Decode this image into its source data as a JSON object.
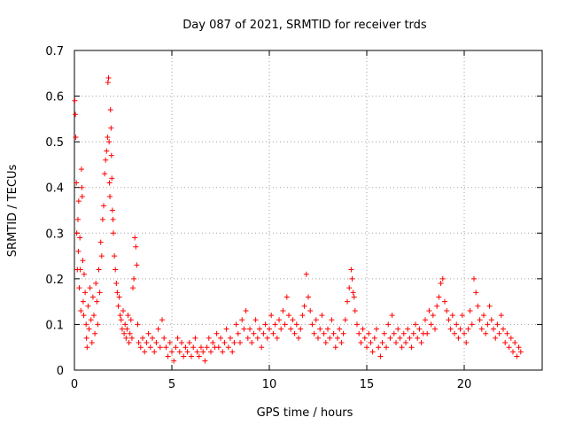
{
  "chart_data": {
    "type": "scatter",
    "title": "Day 087 of 2021, SRMTID for receiver trds",
    "xlabel": "GPS time / hours",
    "ylabel": "SRMTID / TECUs",
    "xlim": [
      0,
      24
    ],
    "ylim": [
      0,
      0.7
    ],
    "xticks": [
      0,
      5,
      10,
      15,
      20
    ],
    "yticks": [
      0,
      0.1,
      0.2,
      0.3,
      0.4,
      0.5,
      0.6,
      0.7
    ],
    "xtick_labels": [
      "0",
      "5",
      "10",
      "15",
      "20"
    ],
    "ytick_labels": [
      "0",
      "0.1",
      "0.2",
      "0.3",
      "0.4",
      "0.5",
      "0.6",
      "0.7"
    ],
    "grid": true,
    "marker": "+",
    "color": "#ff0000",
    "series": [
      {
        "name": "trds",
        "points": [
          [
            0.02,
            0.59
          ],
          [
            0.05,
            0.56
          ],
          [
            0.07,
            0.51
          ],
          [
            0.1,
            0.41
          ],
          [
            0.12,
            0.3
          ],
          [
            0.15,
            0.22
          ],
          [
            0.18,
            0.33
          ],
          [
            0.2,
            0.26
          ],
          [
            0.22,
            0.37
          ],
          [
            0.25,
            0.18
          ],
          [
            0.28,
            0.29
          ],
          [
            0.3,
            0.22
          ],
          [
            0.33,
            0.13
          ],
          [
            0.36,
            0.44
          ],
          [
            0.38,
            0.4
          ],
          [
            0.4,
            0.38
          ],
          [
            0.43,
            0.24
          ],
          [
            0.45,
            0.15
          ],
          [
            0.48,
            0.12
          ],
          [
            0.5,
            0.21
          ],
          [
            0.55,
            0.17
          ],
          [
            0.6,
            0.1
          ],
          [
            0.62,
            0.07
          ],
          [
            0.65,
            0.05
          ],
          [
            0.7,
            0.14
          ],
          [
            0.75,
            0.09
          ],
          [
            0.8,
            0.18
          ],
          [
            0.85,
            0.11
          ],
          [
            0.9,
            0.06
          ],
          [
            0.95,
            0.16
          ],
          [
            1.0,
            0.12
          ],
          [
            1.05,
            0.08
          ],
          [
            1.1,
            0.19
          ],
          [
            1.15,
            0.15
          ],
          [
            1.2,
            0.1
          ],
          [
            1.25,
            0.22
          ],
          [
            1.3,
            0.17
          ],
          [
            1.35,
            0.28
          ],
          [
            1.4,
            0.25
          ],
          [
            1.45,
            0.33
          ],
          [
            1.5,
            0.36
          ],
          [
            1.55,
            0.43
          ],
          [
            1.6,
            0.46
          ],
          [
            1.65,
            0.48
          ],
          [
            1.7,
            0.51
          ],
          [
            1.72,
            0.63
          ],
          [
            1.75,
            0.64
          ],
          [
            1.78,
            0.5
          ],
          [
            1.8,
            0.41
          ],
          [
            1.82,
            0.38
          ],
          [
            1.85,
            0.57
          ],
          [
            1.88,
            0.53
          ],
          [
            1.9,
            0.47
          ],
          [
            1.92,
            0.42
          ],
          [
            1.95,
            0.35
          ],
          [
            1.98,
            0.33
          ],
          [
            2.0,
            0.3
          ],
          [
            2.05,
            0.25
          ],
          [
            2.1,
            0.22
          ],
          [
            2.15,
            0.19
          ],
          [
            2.2,
            0.17
          ],
          [
            2.25,
            0.14
          ],
          [
            2.3,
            0.16
          ],
          [
            2.35,
            0.12
          ],
          [
            2.4,
            0.11
          ],
          [
            2.45,
            0.09
          ],
          [
            2.5,
            0.13
          ],
          [
            2.55,
            0.08
          ],
          [
            2.6,
            0.1
          ],
          [
            2.65,
            0.07
          ],
          [
            2.7,
            0.09
          ],
          [
            2.75,
            0.12
          ],
          [
            2.8,
            0.06
          ],
          [
            2.85,
            0.08
          ],
          [
            2.9,
            0.11
          ],
          [
            2.95,
            0.07
          ],
          [
            3.0,
            0.18
          ],
          [
            3.05,
            0.2
          ],
          [
            3.1,
            0.29
          ],
          [
            3.15,
            0.27
          ],
          [
            3.2,
            0.23
          ],
          [
            3.25,
            0.1
          ],
          [
            3.3,
            0.06
          ],
          [
            3.4,
            0.05
          ],
          [
            3.5,
            0.07
          ],
          [
            3.6,
            0.04
          ],
          [
            3.7,
            0.06
          ],
          [
            3.8,
            0.08
          ],
          [
            3.9,
            0.05
          ],
          [
            4.0,
            0.07
          ],
          [
            4.1,
            0.04
          ],
          [
            4.2,
            0.06
          ],
          [
            4.3,
            0.09
          ],
          [
            4.4,
            0.05
          ],
          [
            4.5,
            0.11
          ],
          [
            4.6,
            0.07
          ],
          [
            4.7,
            0.05
          ],
          [
            4.8,
            0.03
          ],
          [
            4.9,
            0.06
          ],
          [
            5.0,
            0.04
          ],
          [
            5.1,
            0.02
          ],
          [
            5.2,
            0.05
          ],
          [
            5.3,
            0.07
          ],
          [
            5.4,
            0.04
          ],
          [
            5.5,
            0.06
          ],
          [
            5.6,
            0.03
          ],
          [
            5.7,
            0.05
          ],
          [
            5.8,
            0.04
          ],
          [
            5.9,
            0.06
          ],
          [
            6.0,
            0.03
          ],
          [
            6.1,
            0.05
          ],
          [
            6.2,
            0.07
          ],
          [
            6.3,
            0.04
          ],
          [
            6.4,
            0.03
          ],
          [
            6.5,
            0.05
          ],
          [
            6.6,
            0.04
          ],
          [
            6.7,
            0.02
          ],
          [
            6.8,
            0.05
          ],
          [
            6.9,
            0.07
          ],
          [
            7.0,
            0.04
          ],
          [
            7.1,
            0.06
          ],
          [
            7.2,
            0.05
          ],
          [
            7.3,
            0.08
          ],
          [
            7.4,
            0.05
          ],
          [
            7.5,
            0.07
          ],
          [
            7.6,
            0.04
          ],
          [
            7.7,
            0.06
          ],
          [
            7.8,
            0.09
          ],
          [
            7.9,
            0.05
          ],
          [
            8.0,
            0.07
          ],
          [
            8.1,
            0.04
          ],
          [
            8.2,
            0.06
          ],
          [
            8.3,
            0.1
          ],
          [
            8.4,
            0.08
          ],
          [
            8.5,
            0.06
          ],
          [
            8.6,
            0.11
          ],
          [
            8.7,
            0.09
          ],
          [
            8.8,
            0.13
          ],
          [
            8.9,
            0.07
          ],
          [
            9.0,
            0.09
          ],
          [
            9.1,
            0.06
          ],
          [
            9.2,
            0.08
          ],
          [
            9.3,
            0.11
          ],
          [
            9.4,
            0.07
          ],
          [
            9.5,
            0.09
          ],
          [
            9.6,
            0.05
          ],
          [
            9.7,
            0.08
          ],
          [
            9.8,
            0.1
          ],
          [
            9.9,
            0.07
          ],
          [
            10.0,
            0.09
          ],
          [
            10.1,
            0.12
          ],
          [
            10.2,
            0.08
          ],
          [
            10.3,
            0.1
          ],
          [
            10.4,
            0.07
          ],
          [
            10.5,
            0.11
          ],
          [
            10.6,
            0.09
          ],
          [
            10.7,
            0.13
          ],
          [
            10.8,
            0.1
          ],
          [
            10.9,
            0.16
          ],
          [
            11.0,
            0.12
          ],
          [
            11.1,
            0.09
          ],
          [
            11.2,
            0.11
          ],
          [
            11.3,
            0.08
          ],
          [
            11.4,
            0.1
          ],
          [
            11.5,
            0.07
          ],
          [
            11.6,
            0.09
          ],
          [
            11.7,
            0.12
          ],
          [
            11.8,
            0.14
          ],
          [
            11.9,
            0.21
          ],
          [
            12.0,
            0.16
          ],
          [
            12.1,
            0.13
          ],
          [
            12.2,
            0.1
          ],
          [
            12.3,
            0.08
          ],
          [
            12.4,
            0.11
          ],
          [
            12.5,
            0.07
          ],
          [
            12.6,
            0.09
          ],
          [
            12.7,
            0.12
          ],
          [
            12.8,
            0.08
          ],
          [
            12.9,
            0.06
          ],
          [
            13.0,
            0.09
          ],
          [
            13.1,
            0.07
          ],
          [
            13.2,
            0.11
          ],
          [
            13.3,
            0.08
          ],
          [
            13.4,
            0.05
          ],
          [
            13.5,
            0.07
          ],
          [
            13.6,
            0.09
          ],
          [
            13.7,
            0.06
          ],
          [
            13.8,
            0.08
          ],
          [
            13.9,
            0.11
          ],
          [
            14.0,
            0.15
          ],
          [
            14.1,
            0.18
          ],
          [
            14.2,
            0.22
          ],
          [
            14.25,
            0.2
          ],
          [
            14.3,
            0.17
          ],
          [
            14.35,
            0.16
          ],
          [
            14.4,
            0.13
          ],
          [
            14.5,
            0.1
          ],
          [
            14.6,
            0.08
          ],
          [
            14.7,
            0.06
          ],
          [
            14.8,
            0.09
          ],
          [
            14.9,
            0.07
          ],
          [
            15.0,
            0.05
          ],
          [
            15.1,
            0.08
          ],
          [
            15.2,
            0.06
          ],
          [
            15.3,
            0.04
          ],
          [
            15.4,
            0.07
          ],
          [
            15.5,
            0.09
          ],
          [
            15.6,
            0.05
          ],
          [
            15.7,
            0.03
          ],
          [
            15.8,
            0.06
          ],
          [
            15.9,
            0.08
          ],
          [
            16.0,
            0.05
          ],
          [
            16.1,
            0.1
          ],
          [
            16.2,
            0.07
          ],
          [
            16.3,
            0.12
          ],
          [
            16.4,
            0.08
          ],
          [
            16.5,
            0.06
          ],
          [
            16.6,
            0.09
          ],
          [
            16.7,
            0.07
          ],
          [
            16.8,
            0.05
          ],
          [
            16.9,
            0.08
          ],
          [
            17.0,
            0.06
          ],
          [
            17.1,
            0.09
          ],
          [
            17.2,
            0.07
          ],
          [
            17.3,
            0.05
          ],
          [
            17.4,
            0.08
          ],
          [
            17.5,
            0.1
          ],
          [
            17.6,
            0.07
          ],
          [
            17.7,
            0.09
          ],
          [
            17.8,
            0.06
          ],
          [
            17.9,
            0.08
          ],
          [
            18.0,
            0.11
          ],
          [
            18.1,
            0.08
          ],
          [
            18.2,
            0.13
          ],
          [
            18.3,
            0.1
          ],
          [
            18.4,
            0.12
          ],
          [
            18.5,
            0.09
          ],
          [
            18.6,
            0.14
          ],
          [
            18.7,
            0.16
          ],
          [
            18.8,
            0.19
          ],
          [
            18.9,
            0.2
          ],
          [
            19.0,
            0.15
          ],
          [
            19.1,
            0.13
          ],
          [
            19.2,
            0.11
          ],
          [
            19.3,
            0.09
          ],
          [
            19.4,
            0.12
          ],
          [
            19.5,
            0.08
          ],
          [
            19.6,
            0.1
          ],
          [
            19.7,
            0.07
          ],
          [
            19.8,
            0.09
          ],
          [
            19.9,
            0.12
          ],
          [
            20.0,
            0.08
          ],
          [
            20.1,
            0.06
          ],
          [
            20.2,
            0.09
          ],
          [
            20.3,
            0.13
          ],
          [
            20.4,
            0.1
          ],
          [
            20.5,
            0.2
          ],
          [
            20.6,
            0.17
          ],
          [
            20.7,
            0.14
          ],
          [
            20.8,
            0.11
          ],
          [
            20.9,
            0.09
          ],
          [
            21.0,
            0.12
          ],
          [
            21.1,
            0.08
          ],
          [
            21.2,
            0.1
          ],
          [
            21.3,
            0.14
          ],
          [
            21.4,
            0.11
          ],
          [
            21.5,
            0.09
          ],
          [
            21.6,
            0.07
          ],
          [
            21.7,
            0.1
          ],
          [
            21.8,
            0.08
          ],
          [
            21.9,
            0.12
          ],
          [
            22.0,
            0.09
          ],
          [
            22.1,
            0.06
          ],
          [
            22.2,
            0.08
          ],
          [
            22.3,
            0.05
          ],
          [
            22.4,
            0.07
          ],
          [
            22.5,
            0.04
          ],
          [
            22.6,
            0.06
          ],
          [
            22.7,
            0.03
          ],
          [
            22.8,
            0.05
          ],
          [
            22.9,
            0.04
          ]
        ]
      }
    ]
  }
}
